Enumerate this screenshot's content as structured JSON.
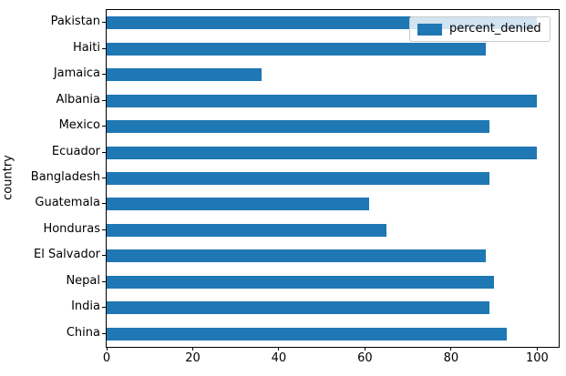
{
  "chart_data": {
    "type": "bar",
    "orientation": "horizontal",
    "title": "",
    "xlabel": "",
    "ylabel": "country",
    "categories": [
      "Pakistan",
      "Haiti",
      "Jamaica",
      "Albania",
      "Mexico",
      "Ecuador",
      "Bangladesh",
      "Guatemala",
      "Honduras",
      "El Salvador",
      "Nepal",
      "India",
      "China"
    ],
    "series": [
      {
        "name": "percent_denied",
        "values": [
          100,
          88,
          36,
          100,
          89,
          100,
          89,
          61,
          65,
          88,
          90,
          89,
          93
        ]
      }
    ],
    "xlim": [
      0,
      105
    ],
    "x_ticks": [
      0,
      20,
      40,
      60,
      80,
      100
    ],
    "grid": false,
    "bar_color": "#1f77b4",
    "legend": {
      "label": "percent_denied",
      "position": "upper right"
    }
  }
}
